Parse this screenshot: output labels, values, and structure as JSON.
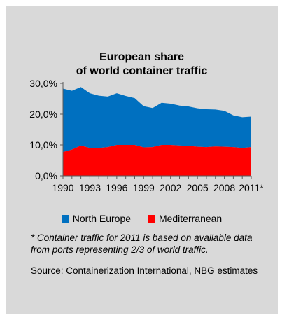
{
  "chart_data": {
    "type": "area",
    "stacked": true,
    "title_lines": [
      "European share",
      "of world container traffic"
    ],
    "x": [
      "1990",
      "1991",
      "1992",
      "1993",
      "1994",
      "1995",
      "1996",
      "1997",
      "1998",
      "1999",
      "2000",
      "2001",
      "2002",
      "2003",
      "2004",
      "2005",
      "2006",
      "2007",
      "2008",
      "2009",
      "2010",
      "2011*"
    ],
    "x_tick_labels": [
      "1990",
      "1993",
      "1996",
      "1999",
      "2002",
      "2005",
      "2008",
      "2011*"
    ],
    "y_tick_labels": [
      "0,0%",
      "10,0%",
      "20,0%",
      "30,0%"
    ],
    "ylim": [
      0,
      30
    ],
    "grid": false,
    "legend_position": "bottom",
    "series": [
      {
        "name": "Mediterranean",
        "color": "#ff0000",
        "values": [
          7.7,
          8.5,
          9.8,
          9.0,
          9.0,
          9.3,
          10.0,
          10.0,
          10.0,
          9.2,
          9.3,
          10.0,
          10.0,
          9.8,
          9.7,
          9.4,
          9.3,
          9.5,
          9.4,
          9.3,
          9.0,
          9.3
        ]
      },
      {
        "name": "North Europe",
        "color": "#0070c0",
        "values": [
          20.6,
          19.1,
          19.0,
          17.8,
          17.0,
          16.4,
          16.8,
          15.9,
          15.2,
          13.4,
          12.7,
          13.7,
          13.4,
          13.0,
          12.8,
          12.5,
          12.3,
          12.0,
          11.7,
          10.3,
          10.0,
          9.9
        ]
      }
    ]
  },
  "footnote": "* Container traffic for 2011 is based on available data from ports representing 2/3 of world traffic.",
  "source": "Source: Containerization International, NBG estimates"
}
